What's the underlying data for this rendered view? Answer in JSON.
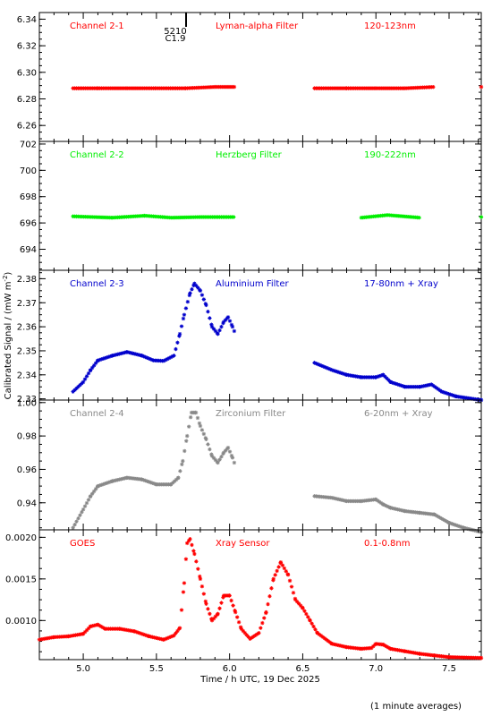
{
  "figure": {
    "xlabel": "Time / h UTC, 19 Dec 2025",
    "ylabel": "Calibrated Signal / (mW m",
    "ylabel_sup": "-2",
    "ylabel_end": ")",
    "footnote": "(1 minute averages)",
    "marker_label_top": "5210",
    "marker_label_bottom": "C1.9"
  },
  "chart_data": [
    {
      "type": "scatter",
      "marker": "asterisk",
      "channel": "Channel 2-1",
      "filter": "Lyman-alpha Filter",
      "band": "120-123nm",
      "color": "#ff0000",
      "xlim": [
        4.7,
        7.72
      ],
      "ylim": [
        6.248,
        6.345
      ],
      "yticks": [
        6.26,
        6.28,
        6.3,
        6.32,
        6.34
      ],
      "ytick_labels": [
        "6.26",
        "6.28",
        "6.30",
        "6.32",
        "6.34"
      ],
      "points": [
        [
          4.93,
          6.288
        ],
        [
          5.1,
          6.288
        ],
        [
          5.3,
          6.288
        ],
        [
          5.5,
          6.288
        ],
        [
          5.7,
          6.288
        ],
        [
          5.9,
          6.289
        ],
        [
          6.04,
          6.289
        ],
        [
          6.58,
          6.288
        ],
        [
          6.8,
          6.288
        ],
        [
          7.0,
          6.288
        ],
        [
          7.2,
          6.288
        ],
        [
          7.4,
          6.289
        ],
        [
          7.72,
          6.289
        ]
      ]
    },
    {
      "type": "scatter",
      "marker": "asterisk",
      "channel": "Channel 2-2",
      "filter": "Herzberg Filter",
      "band": "190-222nm",
      "color": "#00ee00",
      "xlim": [
        4.7,
        7.72
      ],
      "ylim": [
        692.4,
        702.2
      ],
      "yticks": [
        694,
        696,
        698,
        700,
        702
      ],
      "ytick_labels": [
        "694",
        "696",
        "698",
        "700",
        "702"
      ],
      "points": [
        [
          4.93,
          696.5
        ],
        [
          5.2,
          696.4
        ],
        [
          5.42,
          696.55
        ],
        [
          5.6,
          696.4
        ],
        [
          5.8,
          696.45
        ],
        [
          6.04,
          696.45
        ],
        [
          6.58,
          696.45
        ],
        [
          6.9,
          696.4
        ],
        [
          7.08,
          696.6
        ],
        [
          7.3,
          696.4
        ],
        [
          7.72,
          696.45
        ]
      ]
    },
    {
      "type": "scatter",
      "marker": "asterisk",
      "channel": "Channel 2-3",
      "filter": "Aluminium Filter",
      "band": "17-80nm + Xray",
      "color": "#0000cc",
      "xlim": [
        4.7,
        7.72
      ],
      "ylim": [
        2.3295,
        2.3835
      ],
      "yticks": [
        2.33,
        2.34,
        2.35,
        2.36,
        2.37,
        2.38
      ],
      "ytick_labels": [
        "2.33",
        "2.34",
        "2.35",
        "2.36",
        "2.37",
        "2.38"
      ],
      "points": [
        [
          4.93,
          2.333
        ],
        [
          5.0,
          2.337
        ],
        [
          5.05,
          2.342
        ],
        [
          5.1,
          2.346
        ],
        [
          5.2,
          2.348
        ],
        [
          5.3,
          2.3495
        ],
        [
          5.4,
          2.348
        ],
        [
          5.48,
          2.346
        ],
        [
          5.55,
          2.3458
        ],
        [
          5.62,
          2.348
        ],
        [
          5.66,
          2.357
        ],
        [
          5.69,
          2.365
        ],
        [
          5.73,
          2.374
        ],
        [
          5.76,
          2.378
        ],
        [
          5.8,
          2.375
        ],
        [
          5.84,
          2.369
        ],
        [
          5.88,
          2.36
        ],
        [
          5.92,
          2.357
        ],
        [
          5.96,
          2.362
        ],
        [
          5.99,
          2.364
        ],
        [
          6.02,
          2.36
        ],
        [
          6.04,
          2.357
        ],
        [
          6.58,
          2.345
        ],
        [
          6.7,
          2.342
        ],
        [
          6.8,
          2.34
        ],
        [
          6.9,
          2.339
        ],
        [
          7.0,
          2.339
        ],
        [
          7.05,
          2.34
        ],
        [
          7.1,
          2.337
        ],
        [
          7.2,
          2.335
        ],
        [
          7.3,
          2.335
        ],
        [
          7.38,
          2.336
        ],
        [
          7.45,
          2.333
        ],
        [
          7.55,
          2.331
        ],
        [
          7.72,
          2.3295
        ]
      ]
    },
    {
      "type": "scatter",
      "marker": "asterisk",
      "channel": "Channel 2-4",
      "filter": "Zirconium Filter",
      "band": "6-20nm + Xray",
      "color": "#888888",
      "xlim": [
        4.7,
        7.72
      ],
      "ylim": [
        0.9238,
        1.0015
      ],
      "yticks": [
        0.94,
        0.96,
        0.98,
        1.0
      ],
      "ytick_labels": [
        "0.94",
        "0.96",
        "0.98",
        "1.00"
      ],
      "points": [
        [
          4.93,
          0.925
        ],
        [
          5.0,
          0.936
        ],
        [
          5.05,
          0.944
        ],
        [
          5.1,
          0.95
        ],
        [
          5.2,
          0.953
        ],
        [
          5.3,
          0.955
        ],
        [
          5.4,
          0.954
        ],
        [
          5.5,
          0.951
        ],
        [
          5.6,
          0.951
        ],
        [
          5.65,
          0.955
        ],
        [
          5.68,
          0.965
        ],
        [
          5.71,
          0.98
        ],
        [
          5.74,
          0.994
        ],
        [
          5.77,
          0.994
        ],
        [
          5.8,
          0.986
        ],
        [
          5.84,
          0.978
        ],
        [
          5.88,
          0.968
        ],
        [
          5.92,
          0.964
        ],
        [
          5.96,
          0.97
        ],
        [
          5.99,
          0.973
        ],
        [
          6.02,
          0.967
        ],
        [
          6.04,
          0.962
        ],
        [
          6.58,
          0.944
        ],
        [
          6.7,
          0.943
        ],
        [
          6.8,
          0.941
        ],
        [
          6.9,
          0.941
        ],
        [
          7.0,
          0.942
        ],
        [
          7.05,
          0.939
        ],
        [
          7.1,
          0.937
        ],
        [
          7.2,
          0.935
        ],
        [
          7.3,
          0.934
        ],
        [
          7.4,
          0.933
        ],
        [
          7.5,
          0.928
        ],
        [
          7.6,
          0.925
        ],
        [
          7.72,
          0.9225
        ]
      ]
    },
    {
      "type": "scatter",
      "marker": "asterisk",
      "channel": "GOES",
      "filter": "Xray Sensor",
      "band": "0.1-0.8nm",
      "color": "#ff0000",
      "xlim": [
        4.7,
        7.72
      ],
      "ylim": [
        0.00053,
        0.00209
      ],
      "yticks": [
        0.001,
        0.0015,
        0.002
      ],
      "ytick_labels": [
        "0.0010",
        "0.0015",
        "0.0020"
      ],
      "points": [
        [
          4.7,
          0.00077
        ],
        [
          4.8,
          0.0008
        ],
        [
          4.9,
          0.00081
        ],
        [
          5.0,
          0.00084
        ],
        [
          5.05,
          0.00093
        ],
        [
          5.1,
          0.00095
        ],
        [
          5.15,
          0.0009
        ],
        [
          5.25,
          0.0009
        ],
        [
          5.35,
          0.00087
        ],
        [
          5.45,
          0.00081
        ],
        [
          5.55,
          0.00077
        ],
        [
          5.62,
          0.00082
        ],
        [
          5.66,
          0.00091
        ],
        [
          5.69,
          0.00145
        ],
        [
          5.71,
          0.00193
        ],
        [
          5.73,
          0.00198
        ],
        [
          5.76,
          0.0018
        ],
        [
          5.8,
          0.0015
        ],
        [
          5.84,
          0.0012
        ],
        [
          5.88,
          0.001
        ],
        [
          5.92,
          0.00108
        ],
        [
          5.96,
          0.0013
        ],
        [
          6.0,
          0.0013
        ],
        [
          6.04,
          0.0011
        ],
        [
          6.08,
          0.0009
        ],
        [
          6.14,
          0.00078
        ],
        [
          6.2,
          0.00085
        ],
        [
          6.25,
          0.0011
        ],
        [
          6.3,
          0.0015
        ],
        [
          6.35,
          0.0017
        ],
        [
          6.4,
          0.00155
        ],
        [
          6.45,
          0.00125
        ],
        [
          6.5,
          0.00115
        ],
        [
          6.55,
          0.001
        ],
        [
          6.6,
          0.00085
        ],
        [
          6.7,
          0.00072
        ],
        [
          6.8,
          0.00068
        ],
        [
          6.9,
          0.00066
        ],
        [
          6.97,
          0.00067
        ],
        [
          7.0,
          0.00072
        ],
        [
          7.05,
          0.00071
        ],
        [
          7.1,
          0.00066
        ],
        [
          7.2,
          0.00063
        ],
        [
          7.3,
          0.0006
        ],
        [
          7.4,
          0.00058
        ],
        [
          7.5,
          0.00056
        ],
        [
          7.72,
          0.00055
        ]
      ]
    }
  ]
}
